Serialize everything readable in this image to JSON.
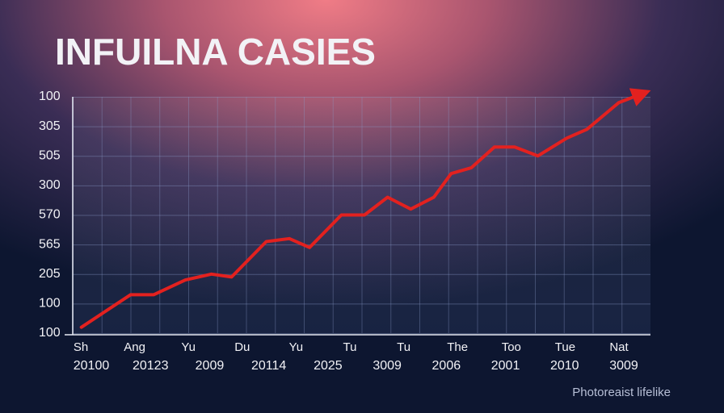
{
  "chart_data": {
    "type": "line",
    "title": "INFUILNA CASIES",
    "x": [
      0.3,
      2.0,
      2.8,
      3.9,
      4.8,
      5.5,
      6.7,
      7.5,
      8.2,
      9.3,
      10.1,
      10.9,
      11.7,
      12.5,
      13.1,
      13.8,
      14.6,
      15.3,
      16.1,
      17.1,
      17.8,
      18.9,
      19.7
    ],
    "values": [
      0.2,
      1.3,
      1.3,
      1.8,
      2.0,
      1.9,
      3.1,
      3.2,
      2.9,
      4.0,
      4.0,
      4.6,
      4.2,
      4.6,
      5.4,
      5.6,
      6.3,
      6.3,
      6.0,
      6.6,
      6.9,
      7.8,
      8.1
    ],
    "color": "#e3211f",
    "xlim": [
      0,
      20
    ],
    "ylim": [
      0,
      8
    ],
    "yticks": [
      {
        "value": 0,
        "label": "100"
      },
      {
        "value": 1,
        "label": "100"
      },
      {
        "value": 2,
        "label": "205"
      },
      {
        "value": 3,
        "label": "565"
      },
      {
        "value": 4,
        "label": "570"
      },
      {
        "value": 5,
        "label": "300"
      },
      {
        "value": 6,
        "label": "505"
      },
      {
        "value": 7,
        "label": "305"
      },
      {
        "value": 8,
        "label": "100"
      }
    ],
    "categories": [
      "Sh",
      "Ang",
      "Yu",
      "Du",
      "Yu",
      "Tu",
      "Tu",
      "The",
      "Too",
      "Tue",
      "Nat"
    ],
    "x_labels_row2": [
      "20100",
      "20123",
      "2009",
      "20114",
      "2025",
      "3009",
      "2006",
      "2001",
      "2010",
      "3009"
    ],
    "grid": true,
    "watermark": "Photoreaist lifelike"
  }
}
